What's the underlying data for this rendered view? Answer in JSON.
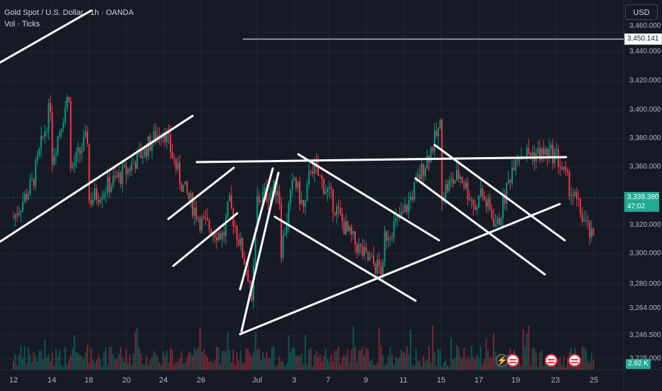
{
  "legend": {
    "symbol": "Gold Spot / U.S. Dollar · 1h · OANDA",
    "indicator": "Vol · Ticks"
  },
  "currency_button": "USD",
  "price_axis": [
    "3,460.000",
    "3,440.000",
    "3,420.000",
    "3,400.000",
    "3,380.000",
    "3,360.000",
    "3,320.000",
    "3,300.000",
    "3,280.000",
    "3,264.000",
    "3,246.500",
    "3,228.000"
  ],
  "date_axis": [
    "12",
    "14",
    "18",
    "20",
    "24",
    "26",
    "Jul",
    "3",
    "7",
    "9",
    "11",
    "15",
    "17",
    "19",
    "23",
    "25"
  ],
  "hline_label": "3,450.141",
  "last_price": "3,339.380",
  "countdown": "47:02",
  "volume_label": "2.92 K",
  "colors": {
    "up": "#089981",
    "down": "#f23645",
    "background": "#161a25",
    "lines": "#ffffff",
    "price_tag": "#22ab94"
  },
  "events": [
    {
      "icon": "flash-icon"
    },
    {
      "icon": "us-flag-icon"
    },
    {
      "icon": "us-flag-icon"
    },
    {
      "icon": "us-flag-icon"
    }
  ],
  "chart_data": {
    "type": "candlestick",
    "title": "Gold Spot / U.S. Dollar · 1h · OANDA",
    "ylim": [
      3240,
      3468
    ],
    "y_ticks": [
      3228,
      3246.5,
      3264,
      3280,
      3300,
      3320,
      3340,
      3360,
      3380,
      3400,
      3420,
      3440,
      3460
    ],
    "anchor_closes": [
      [
        "12",
        3328
      ],
      [
        "13",
        3352
      ],
      [
        "13.5",
        3410
      ],
      [
        "14",
        3442
      ],
      [
        "14.5",
        3418
      ],
      [
        "15",
        3392
      ],
      [
        "18",
        3385
      ],
      [
        "19",
        3372
      ],
      [
        "20",
        3360
      ],
      [
        "23",
        3372
      ],
      [
        "24",
        3390
      ],
      [
        "24.5",
        3350
      ],
      [
        "25",
        3310
      ],
      [
        "26",
        3325
      ],
      [
        "26.5",
        3338
      ],
      [
        "27",
        3315
      ],
      [
        "27.5",
        3280
      ],
      [
        "30",
        3262
      ],
      [
        "30.5",
        3300
      ],
      [
        "Jul",
        3340
      ],
      [
        "2",
        3350
      ],
      [
        "3",
        3355
      ],
      [
        "3.5",
        3365
      ],
      [
        "4",
        3332
      ],
      [
        "7",
        3345
      ],
      [
        "8",
        3318
      ],
      [
        "9",
        3300
      ],
      [
        "9.5",
        3290
      ],
      [
        "10",
        3315
      ],
      [
        "11",
        3330
      ],
      [
        "14",
        3368
      ],
      [
        "14.5",
        3360
      ],
      [
        "15",
        3345
      ],
      [
        "16",
        3358
      ],
      [
        "16.5",
        3330
      ],
      [
        "17",
        3348
      ],
      [
        "17.5",
        3322
      ],
      [
        "18",
        3339.38
      ]
    ],
    "horizontal_line": 3450.141,
    "last_price": 3339.38
  }
}
